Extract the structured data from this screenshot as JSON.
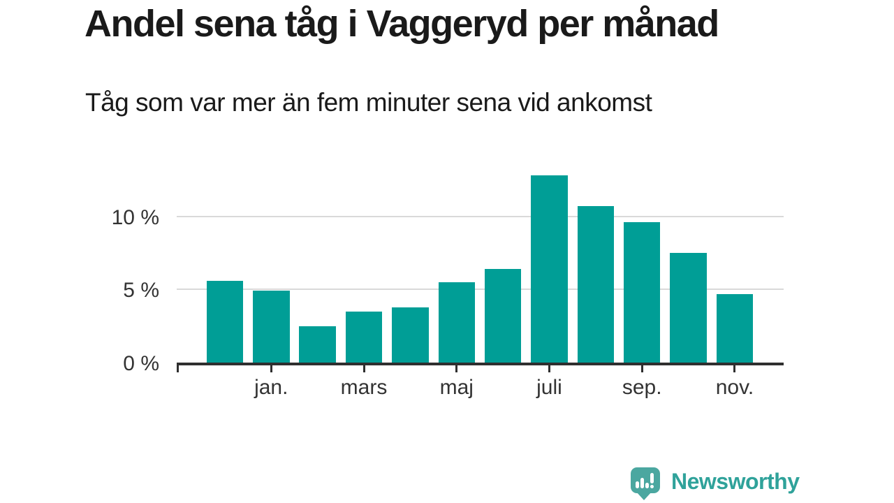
{
  "chart_data": {
    "type": "bar",
    "title": "Andel sena tåg i Vaggeryd per månad",
    "subtitle": "Tåg som var mer än fem minuter sena vid ankomst",
    "unit": "%",
    "values": [
      5.6,
      4.9,
      2.5,
      3.5,
      3.8,
      5.5,
      6.4,
      12.8,
      10.7,
      9.6,
      7.5,
      4.7
    ],
    "x_tick_labels": [
      "jan.",
      "mars",
      "maj",
      "juli",
      "sep.",
      "nov."
    ],
    "x_tick_bar_indices": [
      1,
      3,
      5,
      7,
      9,
      11
    ],
    "y_ticks": [
      {
        "value": 0,
        "label": "0 %"
      },
      {
        "value": 5,
        "label": "5 %"
      },
      {
        "value": 10,
        "label": "10 %"
      }
    ],
    "grid_values": [
      5,
      10
    ],
    "ylim": [
      0,
      13.8
    ],
    "legend": "none",
    "grid": "horizontal",
    "bar_color": "#009e96",
    "axis_color": "#2f2f2f",
    "axis_text_color": "#333333",
    "grid_color": "#d9d9d9"
  },
  "branding": {
    "name": "Newsworthy",
    "logo_icon": "bar-chart-speech-bubble-icon",
    "mark_color": "#4ba7a0",
    "text_color": "#2fa29a"
  }
}
